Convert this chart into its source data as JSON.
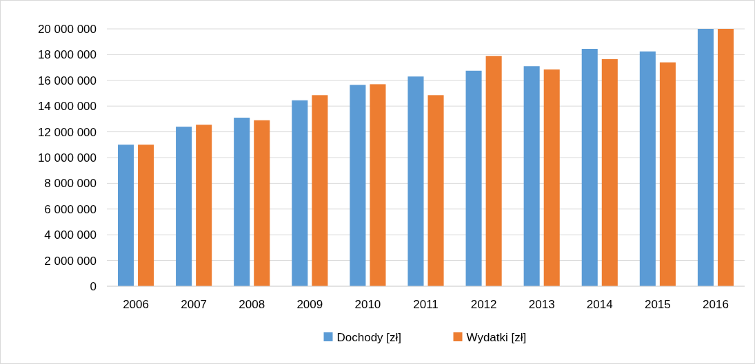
{
  "chart_data": {
    "type": "bar",
    "categories": [
      "2006",
      "2007",
      "2008",
      "2009",
      "2010",
      "2011",
      "2012",
      "2013",
      "2014",
      "2015",
      "2016"
    ],
    "series": [
      {
        "name": "Dochody [zł]",
        "color": "#5b9bd5",
        "values": [
          11000000,
          12400000,
          13100000,
          14450000,
          15650000,
          16300000,
          16750000,
          17100000,
          18450000,
          18250000,
          20000000
        ]
      },
      {
        "name": "Wydatki [zł]",
        "color": "#ed7d31",
        "values": [
          11000000,
          12550000,
          12900000,
          14850000,
          15700000,
          14850000,
          17900000,
          16850000,
          17650000,
          17400000,
          20000000
        ]
      }
    ],
    "ylim": [
      0,
      20000000
    ],
    "yticks": [
      {
        "value": 0,
        "label": "0"
      },
      {
        "value": 2000000,
        "label": "2 000 000"
      },
      {
        "value": 4000000,
        "label": "4 000 000"
      },
      {
        "value": 6000000,
        "label": "6 000 000"
      },
      {
        "value": 8000000,
        "label": "8 000 000"
      },
      {
        "value": 10000000,
        "label": "10 000 000"
      },
      {
        "value": 12000000,
        "label": "12 000 000"
      },
      {
        "value": 14000000,
        "label": "14 000 000"
      },
      {
        "value": 16000000,
        "label": "16 000 000"
      },
      {
        "value": 18000000,
        "label": "18 000 000"
      },
      {
        "value": 20000000,
        "label": "20 000 000"
      }
    ],
    "grid": "y",
    "legend": "bottom"
  }
}
